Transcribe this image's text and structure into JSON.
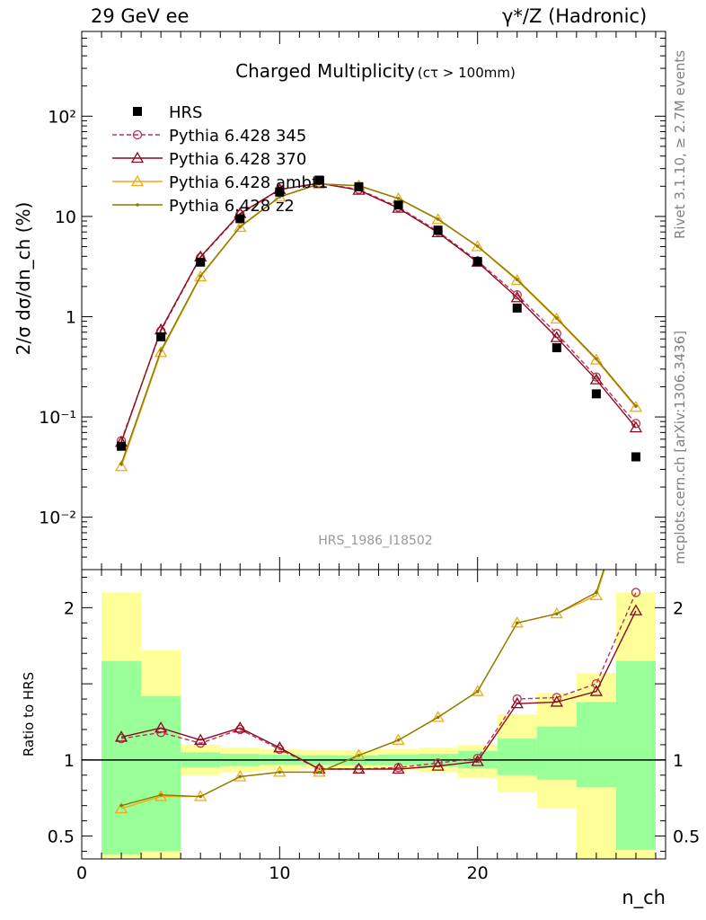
{
  "header": {
    "left": "29 GeV ee",
    "right": "γ*/Z (Hadronic)"
  },
  "side": {
    "rivet": "Rivet 3.1.10, ≥ 2.7M events",
    "mcplots": "mcplots.cern.ch [arXiv:1306.3436]"
  },
  "chart_data": [
    {
      "type": "scatter",
      "panel": "main",
      "title": "Charged Multiplicity",
      "title_suffix": "(cτ > 100mm)",
      "ylabel": "2/σ dσ/dn_ch (%)",
      "ylog": true,
      "ylim": [
        0.003,
        700
      ],
      "xlim": [
        0,
        29.5
      ],
      "yticks": [
        {
          "v": 0.01,
          "t": "10⁻²"
        },
        {
          "v": 0.1,
          "t": "10⁻¹"
        },
        {
          "v": 1,
          "t": "1"
        },
        {
          "v": 10,
          "t": "10"
        },
        {
          "v": 100,
          "t": "10²"
        }
      ],
      "watermark": "HRS_1986_I18502",
      "legend_placement": "top-left",
      "series": [
        {
          "name": "HRS",
          "style": "data",
          "color": "#000000",
          "x": [
            2,
            4,
            6,
            8,
            10,
            12,
            14,
            16,
            18,
            20,
            22,
            24,
            26,
            28
          ],
          "y": [
            0.051,
            0.63,
            3.5,
            9.5,
            17.5,
            23.0,
            19.8,
            13.0,
            7.3,
            3.55,
            1.22,
            0.49,
            0.17,
            0.04
          ]
        },
        {
          "name": "Pythia 6.428 345",
          "style": "circle-dashed",
          "color": "#c0305a",
          "x": [
            2,
            4,
            6,
            8,
            10,
            12,
            14,
            16,
            18,
            20,
            22,
            24,
            26,
            28
          ],
          "y": [
            0.058,
            0.72,
            3.9,
            10.5,
            18.5,
            21.5,
            18.6,
            12.4,
            7.1,
            3.6,
            1.65,
            0.68,
            0.25,
            0.086
          ]
        },
        {
          "name": "Pythia 6.428 370",
          "style": "triangle",
          "color": "#8b0a1e",
          "x": [
            2,
            4,
            6,
            8,
            10,
            12,
            14,
            16,
            18,
            20,
            22,
            24,
            26,
            28
          ],
          "y": [
            0.056,
            0.74,
            3.95,
            10.7,
            18.6,
            21.4,
            18.3,
            12.1,
            6.9,
            3.5,
            1.55,
            0.62,
            0.235,
            0.078
          ]
        },
        {
          "name": "Pythia 6.428 ambt1",
          "style": "triangle",
          "color": "#f2a818",
          "x": [
            2,
            4,
            6,
            8,
            10,
            12,
            14,
            16,
            18,
            20,
            22,
            24,
            26,
            28
          ],
          "y": [
            0.032,
            0.44,
            2.5,
            7.8,
            15.6,
            21.0,
            20.2,
            15.0,
            9.3,
            5.0,
            2.3,
            0.95,
            0.37,
            0.125
          ]
        },
        {
          "name": "Pythia 6.428 z2",
          "style": "dot",
          "color": "#8a7a00",
          "x": [
            2,
            4,
            6,
            8,
            10,
            12,
            14,
            16,
            18,
            20,
            22,
            24,
            26,
            28
          ],
          "y": [
            0.034,
            0.46,
            2.55,
            7.9,
            15.7,
            21.1,
            20.3,
            15.1,
            9.4,
            5.05,
            2.35,
            0.97,
            0.38,
            0.128
          ]
        }
      ]
    },
    {
      "type": "line",
      "panel": "ratio",
      "ylabel": "Ratio to HRS",
      "xlabel": "n_ch",
      "xlim": [
        0,
        29.5
      ],
      "ylim": [
        0.35,
        2.25
      ],
      "yticks": [
        0.5,
        1,
        1.5,
        2
      ],
      "xticks": [
        0,
        10,
        20
      ],
      "bands": {
        "x_edges": [
          1,
          3,
          5,
          7,
          9,
          11,
          13,
          15,
          17,
          19,
          21,
          23,
          25,
          27,
          29
        ],
        "inner": [
          [
            0.38,
            1.65
          ],
          [
            0.4,
            1.42
          ],
          [
            0.95,
            1.05
          ],
          [
            0.96,
            1.04
          ],
          [
            0.97,
            1.035
          ],
          [
            0.97,
            1.03
          ],
          [
            0.965,
            1.03
          ],
          [
            0.965,
            1.035
          ],
          [
            0.955,
            1.04
          ],
          [
            0.945,
            1.06
          ],
          [
            0.9,
            1.14
          ],
          [
            0.87,
            1.22
          ],
          [
            0.82,
            1.38
          ],
          [
            0.41,
            1.65
          ]
        ],
        "outer": [
          [
            0.35,
            2.1
          ],
          [
            0.35,
            1.72
          ],
          [
            0.9,
            1.1
          ],
          [
            0.92,
            1.08
          ],
          [
            0.93,
            1.07
          ],
          [
            0.94,
            1.065
          ],
          [
            0.935,
            1.065
          ],
          [
            0.935,
            1.07
          ],
          [
            0.92,
            1.08
          ],
          [
            0.88,
            1.1
          ],
          [
            0.79,
            1.3
          ],
          [
            0.68,
            1.44
          ],
          [
            0.35,
            1.57
          ],
          [
            0.35,
            2.1
          ]
        ]
      },
      "series": [
        {
          "name": "Pythia 6.428 345",
          "style": "circle-dashed",
          "color": "#c0305a",
          "x": [
            2,
            4,
            6,
            8,
            10,
            12,
            14,
            16,
            18,
            20,
            22,
            24,
            26,
            28
          ],
          "y": [
            1.14,
            1.18,
            1.11,
            1.2,
            1.07,
            0.94,
            0.94,
            0.95,
            0.98,
            1.01,
            1.4,
            1.41,
            1.5,
            2.1
          ]
        },
        {
          "name": "Pythia 6.428 370",
          "style": "triangle",
          "color": "#8b0a1e",
          "x": [
            2,
            4,
            6,
            8,
            10,
            12,
            14,
            16,
            18,
            20,
            22,
            24,
            26,
            28
          ],
          "y": [
            1.15,
            1.21,
            1.13,
            1.21,
            1.08,
            0.94,
            0.94,
            0.94,
            0.96,
            0.99,
            1.37,
            1.38,
            1.45,
            1.98
          ]
        },
        {
          "name": "Pythia 6.428 ambt1",
          "style": "triangle",
          "color": "#f2a818",
          "x": [
            2,
            4,
            6,
            8,
            10,
            12,
            14,
            16,
            18,
            20,
            22,
            24,
            26,
            28
          ],
          "y": [
            0.68,
            0.76,
            0.76,
            0.89,
            0.92,
            0.92,
            1.03,
            1.13,
            1.28,
            1.45,
            1.9,
            1.96,
            2.08,
            2.9
          ]
        },
        {
          "name": "Pythia 6.428 z2",
          "style": "dot",
          "color": "#8a7a00",
          "x": [
            2,
            4,
            6,
            8,
            10,
            12,
            14,
            16,
            18,
            20,
            22,
            24,
            26,
            28
          ],
          "y": [
            0.7,
            0.77,
            0.76,
            0.89,
            0.92,
            0.92,
            1.03,
            1.13,
            1.28,
            1.45,
            1.9,
            1.96,
            2.1,
            2.9
          ]
        }
      ]
    }
  ]
}
